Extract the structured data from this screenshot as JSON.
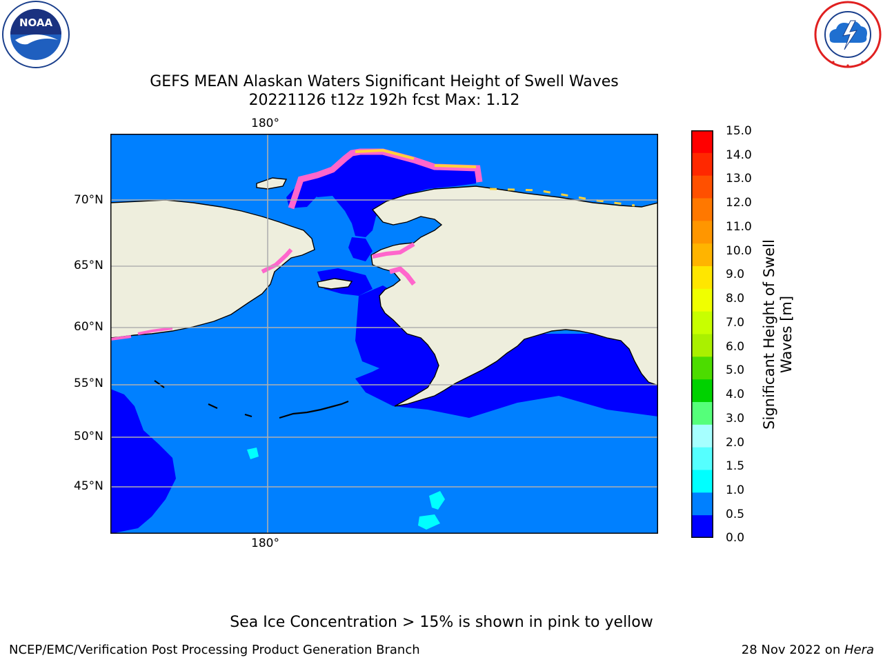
{
  "header": {
    "title_line1": "GEFS MEAN Alaskan Waters Significant Height of Swell Waves",
    "title_line2": "20221126 t12z 192h fcst   Max: 1.12"
  },
  "logos": {
    "left": {
      "name": "noaa-logo",
      "text": "NOAA",
      "ring_text": "NATIONAL OCEANIC AND ATMOSPHERIC ADMINISTRATION · U.S. DEPARTMENT OF COMMERCE"
    },
    "right": {
      "name": "nws-logo",
      "ring_text": "NATIONAL WEATHER SERVICE"
    }
  },
  "map": {
    "top_lon_label": "180°",
    "bottom_lon_label": "180°",
    "lat_labels": [
      "70°N",
      "65°N",
      "60°N",
      "55°N",
      "50°N",
      "45°N"
    ],
    "colors": {
      "land": "#eeeedd",
      "deep_blue": "#0000ff",
      "ocean_blue": "#0080ff",
      "cyan": "#00ffff",
      "sea_ice_pink": "#ff66cc",
      "sea_ice_yellow": "#ffd23a",
      "gridline": "#b0b0b0"
    }
  },
  "colorbar": {
    "label": "Significant Height of Swell Waves [m]",
    "ticks": [
      "15.0",
      "14.0",
      "13.0",
      "12.0",
      "11.0",
      "10.0",
      "9.0",
      "8.0",
      "7.0",
      "6.0",
      "5.0",
      "4.0",
      "3.0",
      "2.0",
      "1.5",
      "1.0",
      "0.5",
      "0.0"
    ],
    "colors_top_to_bottom": [
      "#ff0000",
      "#ff2800",
      "#ff5000",
      "#ff7800",
      "#ff9600",
      "#ffb400",
      "#ffe600",
      "#f0ff00",
      "#c8ff00",
      "#aaf000",
      "#4cdc00",
      "#00d200",
      "#55ff7a",
      "#a6ffff",
      "#55ffff",
      "#00ffff",
      "#0080ff",
      "#0000ff"
    ]
  },
  "footer": {
    "note": "Sea Ice Concentration > 15% is shown in pink to yellow",
    "left": "NCEP/EMC/Verification Post Processing Product Generation Branch",
    "right_prefix": "28 Nov 2022 on ",
    "right_host": "Hera"
  }
}
